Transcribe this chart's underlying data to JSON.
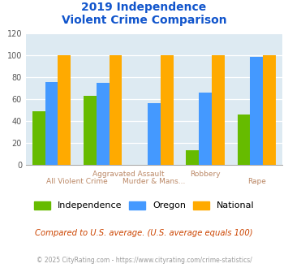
{
  "title_line1": "2019 Independence",
  "title_line2": "Violent Crime Comparison",
  "categories": [
    "All Violent Crime",
    "Aggravated Assault",
    "Murder & Mans...",
    "Robbery",
    "Rape"
  ],
  "independence": [
    49,
    63,
    0,
    13,
    46
  ],
  "oregon": [
    76,
    75,
    56,
    66,
    99
  ],
  "national": [
    100,
    100,
    100,
    100,
    100
  ],
  "independence_color": "#66bb00",
  "oregon_color": "#4499ff",
  "national_color": "#ffaa00",
  "title_color": "#1155cc",
  "xlabel_color": "#bb8866",
  "note_color": "#cc4400",
  "footer_color": "#999999",
  "ylim": [
    0,
    120
  ],
  "yticks": [
    0,
    20,
    40,
    60,
    80,
    100,
    120
  ],
  "background_color": "#ddeaf2",
  "note_text": "Compared to U.S. average. (U.S. average equals 100)",
  "footer_text": "© 2025 CityRating.com - https://www.cityrating.com/crime-statistics/",
  "legend_labels": [
    "Independence",
    "Oregon",
    "National"
  ],
  "top_row_labels": [
    [
      "Aggravated Assault",
      1.5
    ],
    [
      "Robbery",
      3.0
    ]
  ],
  "bot_row_labels": [
    [
      "All Violent Crime",
      0.5
    ],
    [
      "Murder & Mans...",
      2.0
    ],
    [
      "Rape",
      4.0
    ]
  ]
}
